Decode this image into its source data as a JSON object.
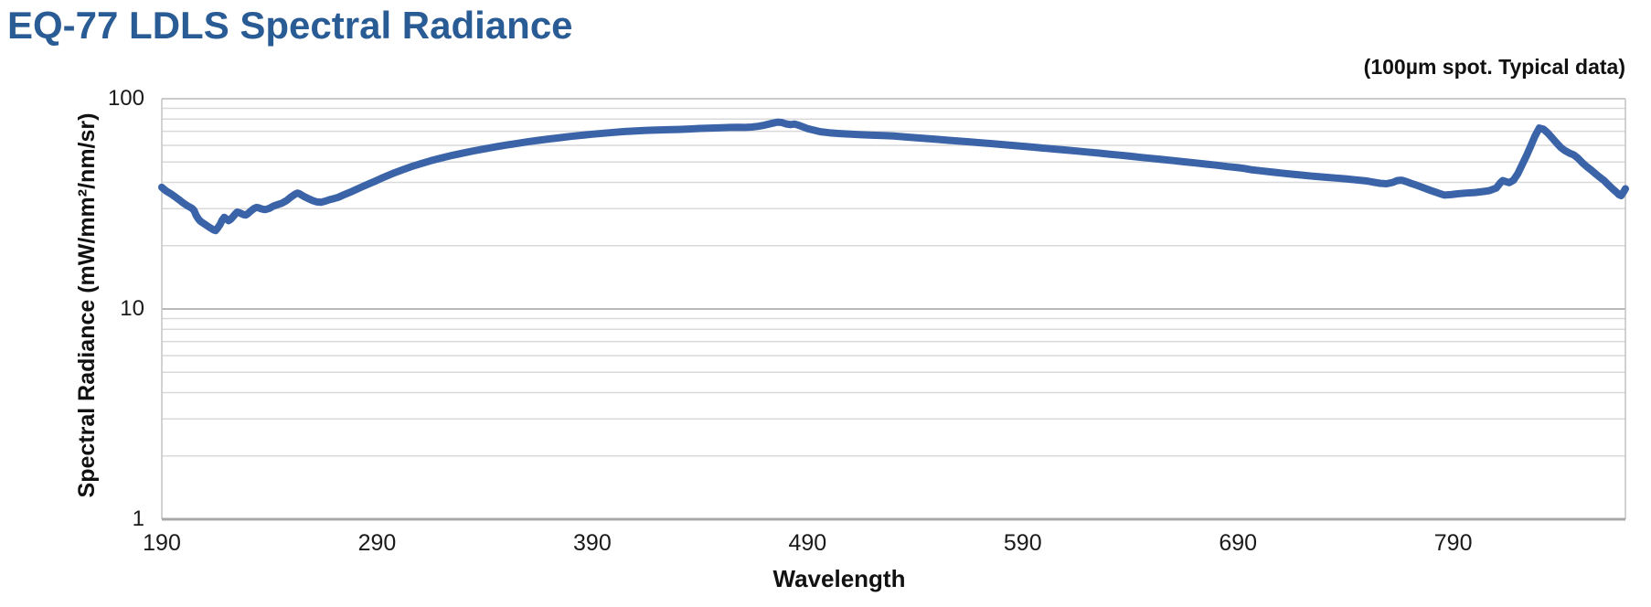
{
  "page": {
    "title": "EQ-77 LDLS Spectral Radiance",
    "note": "(100µm spot. Typical data)"
  },
  "colors": {
    "title_blue": "#295b94",
    "line_blue": "#3b63a8",
    "grid_minor": "#d9d9d9",
    "grid_major": "#b9b9b9",
    "plot_border": "#c4c4c4",
    "axis_line": "#a8a8a8",
    "text_black": "#111111"
  },
  "chart_data": {
    "type": "line",
    "title": "EQ-77 LDLS Spectral Radiance",
    "subtitle": "(100µm spot. Typical data)",
    "xlabel": "Wavelength",
    "ylabel": "Spectral Radiance (mW/mm²/nm/sr)",
    "x_unit": "nm",
    "xlim": [
      190,
      870
    ],
    "x_ticks": [
      190,
      290,
      390,
      490,
      590,
      690,
      790
    ],
    "y_scale": "log",
    "ylim": [
      1,
      100
    ],
    "y_ticks": [
      1,
      10,
      100
    ],
    "grid": "horizontal log minor gridlines, no vertical gridlines",
    "legend": "none",
    "series": [
      {
        "name": "EQ-77 LDLS spectral radiance (100µm spot, typical)",
        "points": [
          [
            190,
            37.9
          ],
          [
            192,
            36.4
          ],
          [
            194,
            35.4
          ],
          [
            196,
            34.3
          ],
          [
            198,
            33.1
          ],
          [
            200,
            31.9
          ],
          [
            202,
            30.9
          ],
          [
            204,
            30.1
          ],
          [
            205,
            29.4
          ],
          [
            206,
            27.8
          ],
          [
            207,
            26.8
          ],
          [
            208,
            26.1
          ],
          [
            210,
            25.3
          ],
          [
            212,
            24.5
          ],
          [
            214,
            23.8
          ],
          [
            215,
            23.6
          ],
          [
            216,
            24.3
          ],
          [
            217,
            25.2
          ],
          [
            218,
            26.4
          ],
          [
            219,
            27.3
          ],
          [
            220,
            26.8
          ],
          [
            221,
            26.3
          ],
          [
            222,
            26.7
          ],
          [
            223,
            27.4
          ],
          [
            224,
            28.2
          ],
          [
            225,
            28.9
          ],
          [
            226,
            28.7
          ],
          [
            228,
            28.1
          ],
          [
            229,
            28.0
          ],
          [
            230,
            28.4
          ],
          [
            231,
            29.0
          ],
          [
            232,
            29.6
          ],
          [
            233,
            30.1
          ],
          [
            234,
            30.4
          ],
          [
            235,
            30.3
          ],
          [
            236,
            30.0
          ],
          [
            237,
            29.8
          ],
          [
            238,
            29.7
          ],
          [
            240,
            30.1
          ],
          [
            242,
            30.9
          ],
          [
            244,
            31.4
          ],
          [
            246,
            31.9
          ],
          [
            248,
            32.8
          ],
          [
            250,
            34.1
          ],
          [
            252,
            35.2
          ],
          [
            253,
            35.6
          ],
          [
            254,
            35.3
          ],
          [
            255,
            34.8
          ],
          [
            256,
            34.3
          ],
          [
            258,
            33.5
          ],
          [
            260,
            32.8
          ],
          [
            262,
            32.3
          ],
          [
            264,
            32.2
          ],
          [
            266,
            32.6
          ],
          [
            268,
            33.1
          ],
          [
            270,
            33.5
          ],
          [
            272,
            34.0
          ],
          [
            274,
            34.7
          ],
          [
            276,
            35.4
          ],
          [
            278,
            36.1
          ],
          [
            280,
            36.9
          ],
          [
            283,
            38.1
          ],
          [
            286,
            39.3
          ],
          [
            289,
            40.5
          ],
          [
            292,
            41.8
          ],
          [
            295,
            43.1
          ],
          [
            298,
            44.4
          ],
          [
            302,
            46.0
          ],
          [
            306,
            47.6
          ],
          [
            310,
            49.0
          ],
          [
            315,
            50.7
          ],
          [
            320,
            52.3
          ],
          [
            325,
            53.8
          ],
          [
            330,
            55.2
          ],
          [
            335,
            56.5
          ],
          [
            340,
            57.8
          ],
          [
            345,
            59.0
          ],
          [
            350,
            60.2
          ],
          [
            355,
            61.3
          ],
          [
            360,
            62.4
          ],
          [
            365,
            63.4
          ],
          [
            370,
            64.4
          ],
          [
            375,
            65.3
          ],
          [
            380,
            66.2
          ],
          [
            385,
            67.0
          ],
          [
            390,
            67.8
          ],
          [
            395,
            68.5
          ],
          [
            400,
            69.2
          ],
          [
            405,
            69.8
          ],
          [
            410,
            70.3
          ],
          [
            415,
            70.7
          ],
          [
            420,
            71.0
          ],
          [
            425,
            71.2
          ],
          [
            430,
            71.4
          ],
          [
            435,
            71.8
          ],
          [
            440,
            72.2
          ],
          [
            445,
            72.5
          ],
          [
            450,
            72.8
          ],
          [
            454,
            73.0
          ],
          [
            458,
            73.2
          ],
          [
            461,
            73.0
          ],
          [
            464,
            73.3
          ],
          [
            467,
            73.9
          ],
          [
            470,
            74.9
          ],
          [
            473,
            76.2
          ],
          [
            476,
            77.4
          ],
          [
            478,
            77.1
          ],
          [
            480,
            75.9
          ],
          [
            482,
            75.3
          ],
          [
            484,
            75.8
          ],
          [
            486,
            74.7
          ],
          [
            488,
            73.4
          ],
          [
            490,
            72.1
          ],
          [
            493,
            70.9
          ],
          [
            496,
            69.7
          ],
          [
            500,
            68.9
          ],
          [
            505,
            68.3
          ],
          [
            510,
            67.8
          ],
          [
            515,
            67.4
          ],
          [
            520,
            67.1
          ],
          [
            525,
            66.8
          ],
          [
            530,
            66.5
          ],
          [
            535,
            65.9
          ],
          [
            540,
            65.3
          ],
          [
            545,
            64.7
          ],
          [
            550,
            64.1
          ],
          [
            555,
            63.5
          ],
          [
            560,
            62.9
          ],
          [
            565,
            62.4
          ],
          [
            570,
            61.8
          ],
          [
            575,
            61.2
          ],
          [
            580,
            60.6
          ],
          [
            585,
            60.0
          ],
          [
            590,
            59.4
          ],
          [
            595,
            58.8
          ],
          [
            600,
            58.2
          ],
          [
            605,
            57.6
          ],
          [
            610,
            57.0
          ],
          [
            615,
            56.4
          ],
          [
            620,
            55.8
          ],
          [
            625,
            55.2
          ],
          [
            630,
            54.5
          ],
          [
            635,
            53.9
          ],
          [
            640,
            53.3
          ],
          [
            645,
            52.6
          ],
          [
            650,
            52.0
          ],
          [
            655,
            51.4
          ],
          [
            660,
            50.8
          ],
          [
            665,
            50.1
          ],
          [
            670,
            49.5
          ],
          [
            675,
            48.9
          ],
          [
            680,
            48.3
          ],
          [
            685,
            47.6
          ],
          [
            690,
            47.0
          ],
          [
            693,
            46.6
          ],
          [
            696,
            46.0
          ],
          [
            700,
            45.5
          ],
          [
            705,
            44.9
          ],
          [
            710,
            44.3
          ],
          [
            715,
            43.8
          ],
          [
            720,
            43.3
          ],
          [
            725,
            42.8
          ],
          [
            730,
            42.4
          ],
          [
            735,
            42.0
          ],
          [
            740,
            41.6
          ],
          [
            745,
            41.1
          ],
          [
            750,
            40.6
          ],
          [
            753,
            40.1
          ],
          [
            756,
            39.6
          ],
          [
            759,
            39.4
          ],
          [
            762,
            40.0
          ],
          [
            764,
            40.8
          ],
          [
            766,
            41.0
          ],
          [
            768,
            40.4
          ],
          [
            770,
            39.7
          ],
          [
            773,
            38.8
          ],
          [
            776,
            37.8
          ],
          [
            779,
            36.8
          ],
          [
            782,
            35.9
          ],
          [
            784,
            35.3
          ],
          [
            786,
            34.8
          ],
          [
            789,
            35.0
          ],
          [
            792,
            35.3
          ],
          [
            796,
            35.6
          ],
          [
            800,
            35.8
          ],
          [
            804,
            36.2
          ],
          [
            807,
            36.6
          ],
          [
            810,
            37.6
          ],
          [
            812,
            39.9
          ],
          [
            813,
            40.8
          ],
          [
            814,
            40.5
          ],
          [
            816,
            39.9
          ],
          [
            818,
            41.0
          ],
          [
            820,
            44.0
          ],
          [
            822,
            48.5
          ],
          [
            824,
            53.5
          ],
          [
            826,
            59.5
          ],
          [
            828,
            66.5
          ],
          [
            830,
            72.5
          ],
          [
            832,
            71.6
          ],
          [
            834,
            68.6
          ],
          [
            836,
            65.1
          ],
          [
            838,
            61.6
          ],
          [
            840,
            58.6
          ],
          [
            842,
            56.6
          ],
          [
            844,
            55.1
          ],
          [
            846,
            54.1
          ],
          [
            848,
            52.1
          ],
          [
            850,
            49.6
          ],
          [
            852,
            47.6
          ],
          [
            854,
            45.9
          ],
          [
            856,
            44.1
          ],
          [
            858,
            42.4
          ],
          [
            860,
            40.9
          ],
          [
            862,
            39.0
          ],
          [
            864,
            37.3
          ],
          [
            866,
            35.8
          ],
          [
            867,
            35.0
          ],
          [
            868,
            34.6
          ],
          [
            869,
            35.8
          ],
          [
            870,
            37.3
          ]
        ]
      }
    ]
  }
}
